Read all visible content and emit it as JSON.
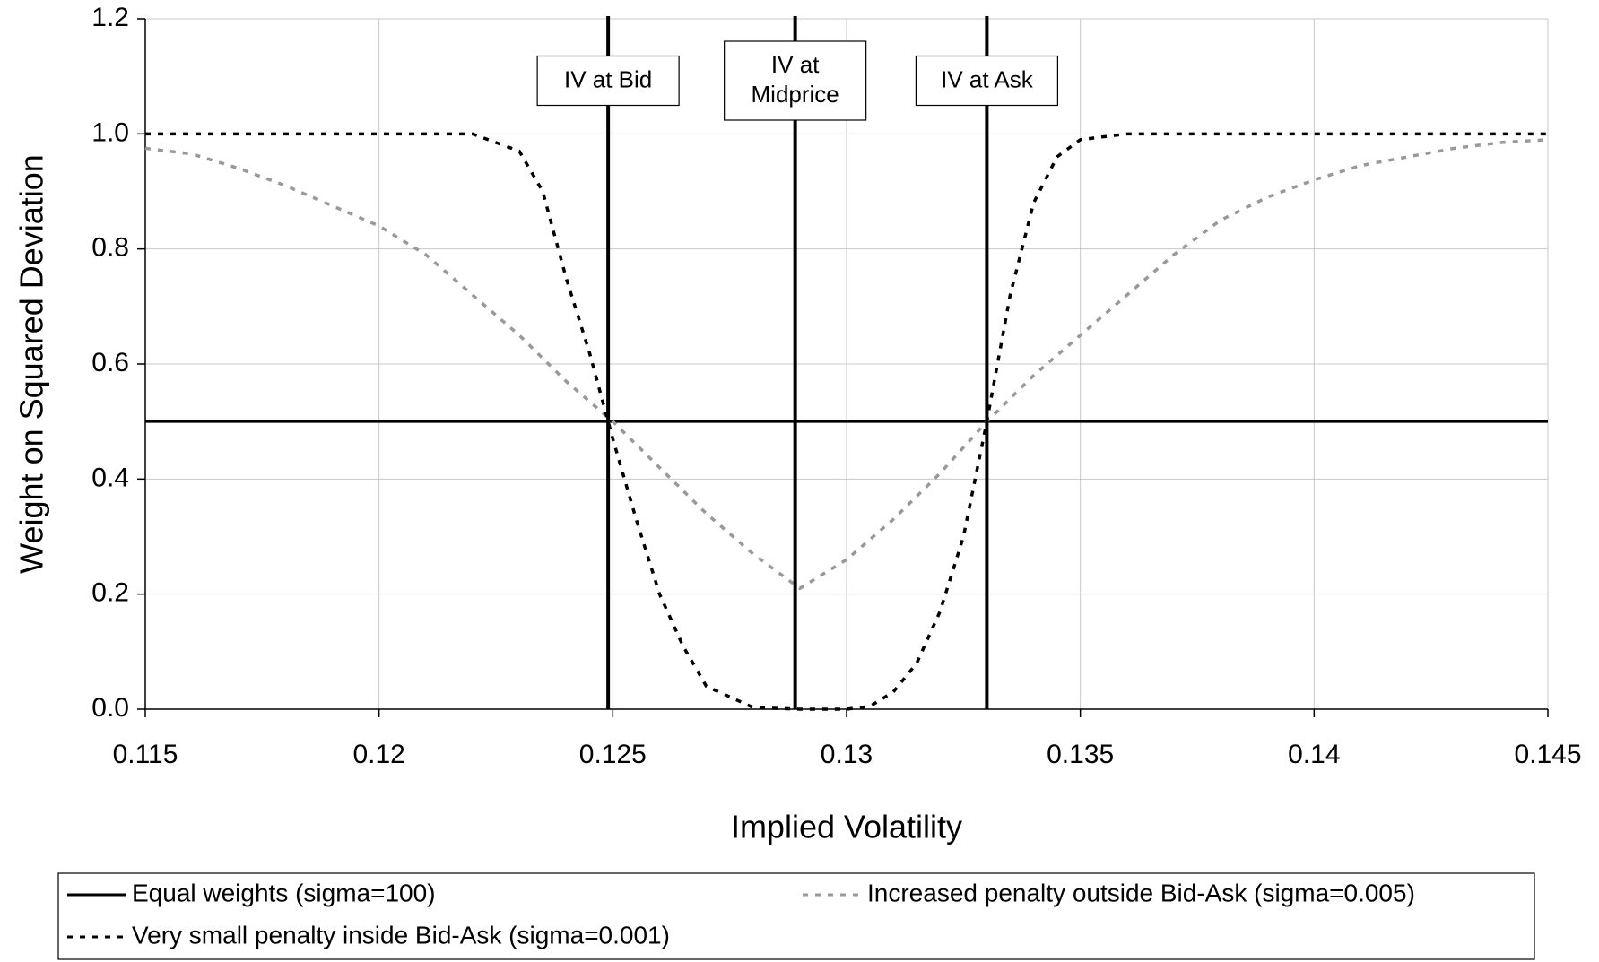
{
  "chart_data": {
    "type": "line",
    "xlabel": "Implied Volatility",
    "ylabel": "Weight on Squared Deviation",
    "xlim": [
      0.115,
      0.145
    ],
    "xticks": [
      0.115,
      0.12,
      0.125,
      0.13,
      0.135,
      0.14,
      0.145
    ],
    "ylim": [
      0,
      1.2
    ],
    "yticks": [
      {
        "value": 0,
        "label": "0.0"
      },
      {
        "value": 0.2,
        "label": "0.2"
      },
      {
        "value": 0.4,
        "label": "0.4"
      },
      {
        "value": 0.6,
        "label": "0.6"
      },
      {
        "value": 0.8,
        "label": "0.8"
      },
      {
        "value": 1,
        "label": "1.0"
      },
      {
        "value": 1.2,
        "label": "1.2"
      }
    ],
    "grid": true,
    "series": [
      {
        "name": "Equal weights (sigma=100)",
        "color": "#000000",
        "style": "solid",
        "x": [
          0.115,
          0.145
        ],
        "values": [
          0.5,
          0.5
        ]
      },
      {
        "name": "Increased penalty outside Bid-Ask (sigma=0.005)",
        "color": "#999999",
        "style": "dashed",
        "x": [
          0.115,
          0.116,
          0.117,
          0.118,
          0.119,
          0.12,
          0.121,
          0.122,
          0.123,
          0.124,
          0.125,
          0.126,
          0.127,
          0.128,
          0.129,
          0.13,
          0.131,
          0.132,
          0.133,
          0.134,
          0.135,
          0.136,
          0.137,
          0.138,
          0.139,
          0.14,
          0.141,
          0.142,
          0.143,
          0.144,
          0.145
        ],
        "values": [
          0.975,
          0.965,
          0.94,
          0.91,
          0.875,
          0.84,
          0.79,
          0.72,
          0.65,
          0.57,
          0.5,
          0.42,
          0.34,
          0.27,
          0.21,
          0.26,
          0.33,
          0.41,
          0.5,
          0.58,
          0.65,
          0.72,
          0.79,
          0.85,
          0.89,
          0.92,
          0.945,
          0.96,
          0.975,
          0.985,
          0.99
        ]
      },
      {
        "name": "Very small penalty inside Bid-Ask (sigma=0.001)",
        "color": "#000000",
        "style": "dashed",
        "x": [
          0.115,
          0.122,
          0.123,
          0.1235,
          0.124,
          0.1245,
          0.125,
          0.1255,
          0.126,
          0.1265,
          0.127,
          0.128,
          0.129,
          0.13,
          0.1305,
          0.131,
          0.1315,
          0.132,
          0.1325,
          0.133,
          0.1335,
          0.134,
          0.1345,
          0.135,
          0.136,
          0.145
        ],
        "values": [
          1,
          1,
          0.97,
          0.9,
          0.75,
          0.62,
          0.47,
          0.33,
          0.2,
          0.11,
          0.04,
          0.003,
          0,
          0,
          0.005,
          0.03,
          0.08,
          0.17,
          0.3,
          0.5,
          0.72,
          0.88,
          0.96,
          0.99,
          1,
          1
        ]
      }
    ],
    "vlines": [
      {
        "x": 0.1249,
        "label": [
          "IV at Bid"
        ]
      },
      {
        "x": 0.1289,
        "label": [
          "IV at",
          "Midprice"
        ]
      },
      {
        "x": 0.133,
        "label": [
          "IV at Ask"
        ]
      }
    ]
  }
}
